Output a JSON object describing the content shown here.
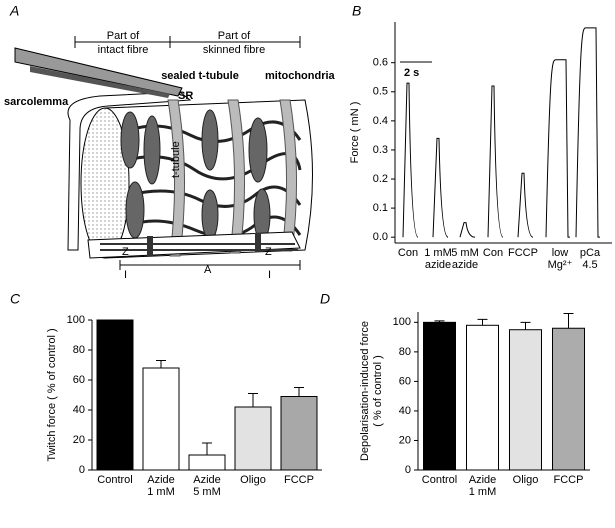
{
  "diagram": {
    "label": "A",
    "regions": [
      [
        "Part of",
        "intact fibre"
      ],
      [
        "Part of",
        "skinned fibre"
      ]
    ],
    "labels": [
      "sealed t-tubule",
      "SR",
      "mitochondria",
      "sarcolemma",
      "t-tubule"
    ],
    "bands": [
      "Z",
      "I",
      "A",
      "Z",
      "I"
    ]
  },
  "chart_data": [
    {
      "type": "trace",
      "panel": "B",
      "ylabel": "Force  ( mN )",
      "scale_bar": "2 s",
      "categories": [
        [
          "Con"
        ],
        [
          "1 mM",
          "azide"
        ],
        [
          "5 mM",
          "azide"
        ],
        [
          "Con"
        ],
        [
          "FCCP"
        ],
        [
          "low",
          "Mg²⁺"
        ],
        [
          "pCa",
          "4.5"
        ]
      ],
      "values": [
        0.53,
        0.34,
        0.05,
        0.52,
        0.22,
        0.61,
        0.72
      ],
      "color": "#000000",
      "ylim": [
        -0.02,
        0.74
      ],
      "yticks": [
        {
          "value": 0,
          "label": "0.0"
        },
        0.1,
        0.2,
        0.3,
        0.4,
        0.5,
        0.6
      ]
    },
    {
      "type": "bar",
      "panel": "C",
      "ylabel": "Twitch force  ( % of control )",
      "categories": [
        [
          "Control"
        ],
        [
          "Azide",
          "1 mM"
        ],
        [
          "Azide",
          "5 mM"
        ],
        [
          "Oligo"
        ],
        [
          "FCCP"
        ]
      ],
      "values": [
        100,
        68,
        10,
        42,
        49
      ],
      "errors": [
        0,
        5,
        8,
        9,
        6
      ],
      "colors": [
        "#000000",
        "#ffffff",
        "#ffffff",
        "#e2e2e2",
        "#a8a8a8"
      ],
      "ylim": [
        0,
        100
      ],
      "yticks": [
        0,
        20,
        40,
        60,
        80,
        100
      ]
    },
    {
      "type": "bar",
      "panel": "D",
      "ylabel": [
        "Depolarisation-induced force",
        "( % of control )"
      ],
      "categories": [
        [
          "Control"
        ],
        [
          "Azide",
          "1 mM"
        ],
        [
          "Oligo"
        ],
        [
          "FCCP"
        ]
      ],
      "values": [
        100,
        98,
        95,
        96
      ],
      "errors": [
        1,
        4,
        5,
        10
      ],
      "colors": [
        "#000000",
        "#ffffff",
        "#e2e2e2",
        "#acacac"
      ],
      "ylim": [
        0,
        107
      ],
      "yticks": [
        0,
        20,
        40,
        60,
        80,
        100
      ]
    }
  ]
}
